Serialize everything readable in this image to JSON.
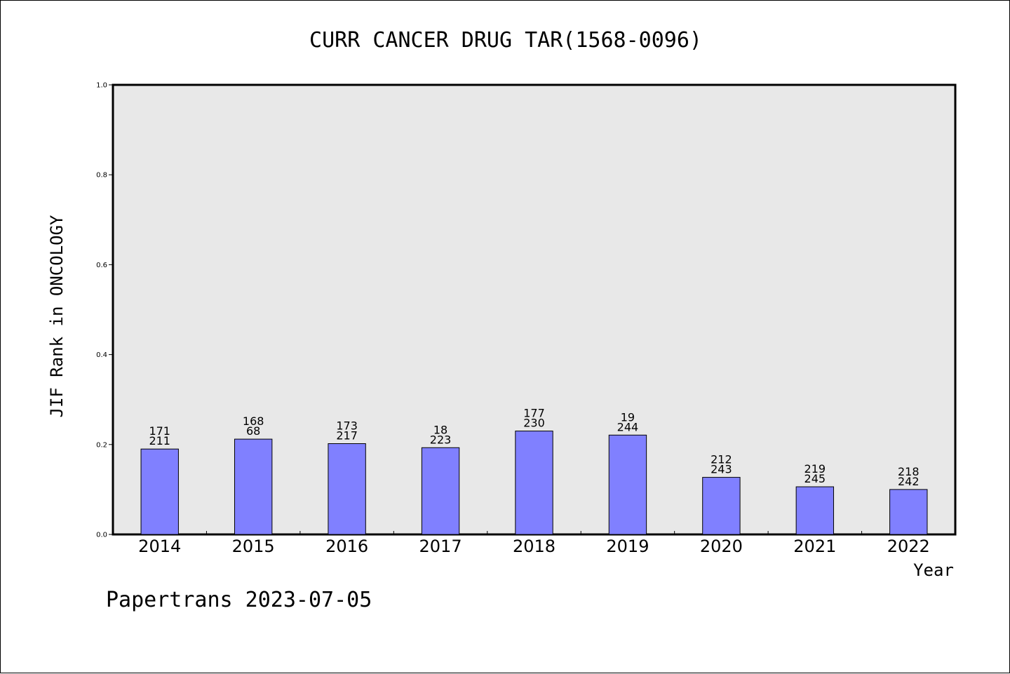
{
  "chart_data": {
    "type": "bar",
    "title": "CURR CANCER DRUG TAR(1568-0096)",
    "xlabel": "Year",
    "ylabel": "JIF Rank in ONCOLOGY",
    "ylim": [
      0,
      1.0
    ],
    "yticks": [
      "0.0",
      "0.2",
      "0.4",
      "0.6",
      "0.8",
      "1.0"
    ],
    "categories": [
      "2014",
      "2015",
      "2016",
      "2017",
      "2018",
      "2019",
      "2020",
      "2021",
      "2022"
    ],
    "values": [
      0.19,
      0.212,
      0.202,
      0.193,
      0.23,
      0.221,
      0.127,
      0.106,
      0.1
    ],
    "labels_top": [
      "171",
      "168",
      "173",
      "18",
      "177",
      "19",
      "212",
      "219",
      "218"
    ],
    "labels_bottom": [
      "211",
      "68",
      "217",
      "223",
      "230",
      "244",
      "243",
      "245",
      "242"
    ],
    "bar_color": "#8080ff",
    "plot_background": "#e8e8e8",
    "grid": false
  },
  "footer": "Papertrans 2023-07-05"
}
